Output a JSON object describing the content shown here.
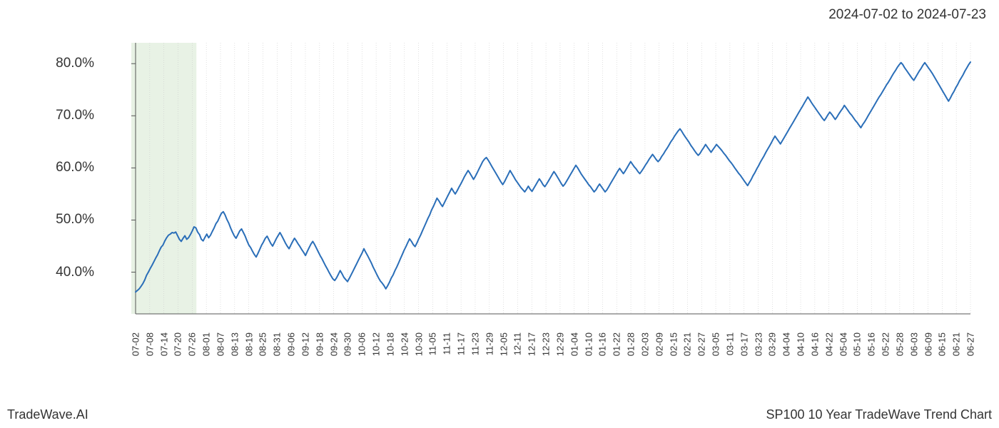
{
  "header": {
    "date_range": "2024-07-02 to 2024-07-23"
  },
  "footer": {
    "brand": "TradeWave.AI",
    "chart_title": "SP100 10 Year TradeWave Trend Chart"
  },
  "chart": {
    "type": "line",
    "background_color": "#ffffff",
    "axis_color": "#555555",
    "grid_color": "#cccccc",
    "grid_dash": "1,2",
    "line_color": "#2a6eb8",
    "line_width": 2,
    "highlight_band": {
      "fill": "#d9ead3",
      "opacity": 0.6,
      "x_start_index": 0,
      "x_end_index": 4
    },
    "y_axis": {
      "min": 32,
      "max": 84,
      "ticks": [
        40,
        50,
        60,
        70,
        80
      ],
      "tick_labels": [
        "40.0%",
        "50.0%",
        "60.0%",
        "70.0%",
        "80.0%"
      ],
      "label_fontsize": 19,
      "label_color": "#333333"
    },
    "x_axis": {
      "tick_labels": [
        "07-02",
        "07-08",
        "07-14",
        "07-20",
        "07-26",
        "08-01",
        "08-07",
        "08-13",
        "08-19",
        "08-25",
        "08-31",
        "09-06",
        "09-12",
        "09-18",
        "09-24",
        "09-30",
        "10-06",
        "10-12",
        "10-18",
        "10-24",
        "10-30",
        "11-05",
        "11-11",
        "11-17",
        "11-23",
        "11-29",
        "12-05",
        "12-11",
        "12-17",
        "12-23",
        "12-29",
        "01-04",
        "01-10",
        "01-16",
        "01-22",
        "01-28",
        "02-03",
        "02-09",
        "02-15",
        "02-21",
        "02-27",
        "03-05",
        "03-11",
        "03-17",
        "03-23",
        "03-29",
        "04-04",
        "04-10",
        "04-16",
        "04-22",
        "05-04",
        "05-10",
        "05-16",
        "05-22",
        "05-28",
        "06-03",
        "06-09",
        "06-15",
        "06-21",
        "06-27"
      ],
      "label_fontsize": 13,
      "label_color": "#333333",
      "rotation": -90
    },
    "series": {
      "values": [
        36.2,
        36.5,
        36.8,
        37.3,
        37.8,
        38.5,
        39.4,
        40.0,
        40.7,
        41.3,
        42.0,
        42.7,
        43.3,
        44.1,
        44.8,
        45.2,
        46.0,
        46.6,
        47.1,
        47.3,
        47.6,
        47.5,
        47.7,
        47.0,
        46.3,
        45.9,
        46.5,
        47.0,
        46.3,
        46.6,
        47.2,
        47.9,
        48.7,
        48.5,
        47.7,
        47.2,
        46.3,
        46.0,
        46.7,
        47.3,
        46.6,
        47.1,
        47.8,
        48.5,
        49.3,
        49.8,
        50.6,
        51.3,
        51.6,
        51.0,
        50.1,
        49.4,
        48.5,
        47.7,
        47.0,
        46.5,
        47.2,
        47.9,
        48.3,
        47.6,
        46.9,
        46.0,
        45.2,
        44.7,
        44.0,
        43.4,
        42.9,
        43.6,
        44.4,
        45.2,
        45.8,
        46.5,
        46.9,
        46.2,
        45.5,
        45.0,
        45.7,
        46.4,
        47.0,
        47.6,
        47.0,
        46.3,
        45.6,
        45.0,
        44.5,
        45.2,
        45.9,
        46.5,
        46.0,
        45.4,
        44.9,
        44.3,
        43.8,
        43.2,
        44.0,
        44.7,
        45.4,
        45.9,
        45.3,
        44.6,
        43.9,
        43.2,
        42.6,
        41.9,
        41.2,
        40.6,
        39.9,
        39.3,
        38.7,
        38.4,
        38.9,
        39.6,
        40.3,
        39.7,
        39.0,
        38.6,
        38.2,
        38.8,
        39.5,
        40.2,
        40.9,
        41.6,
        42.3,
        43.0,
        43.7,
        44.5,
        43.8,
        43.2,
        42.5,
        41.8,
        41.0,
        40.3,
        39.6,
        38.9,
        38.3,
        37.9,
        37.4,
        36.8,
        37.4,
        38.1,
        38.9,
        39.5,
        40.3,
        41.0,
        41.8,
        42.6,
        43.4,
        44.2,
        44.9,
        45.7,
        46.4,
        45.9,
        45.3,
        44.9,
        45.6,
        46.4,
        47.1,
        47.9,
        48.7,
        49.5,
        50.3,
        51.0,
        51.9,
        52.6,
        53.4,
        54.2,
        53.7,
        53.1,
        52.6,
        53.3,
        54.0,
        54.7,
        55.4,
        56.1,
        55.5,
        55.0,
        55.6,
        56.3,
        56.9,
        57.6,
        58.3,
        58.9,
        59.5,
        59.0,
        58.4,
        57.8,
        58.4,
        59.1,
        59.8,
        60.5,
        61.2,
        61.7,
        62.0,
        61.5,
        60.9,
        60.3,
        59.7,
        59.1,
        58.5,
        57.9,
        57.3,
        56.8,
        57.4,
        58.1,
        58.8,
        59.5,
        58.9,
        58.3,
        57.7,
        57.2,
        56.7,
        56.2,
        55.8,
        55.4,
        55.9,
        56.5,
        55.9,
        55.5,
        56.1,
        56.7,
        57.3,
        57.9,
        57.4,
        56.8,
        56.4,
        56.9,
        57.5,
        58.1,
        58.7,
        59.3,
        58.8,
        58.2,
        57.6,
        57.0,
        56.5,
        56.9,
        57.5,
        58.1,
        58.7,
        59.3,
        59.9,
        60.5,
        60.0,
        59.4,
        58.8,
        58.3,
        57.8,
        57.3,
        56.8,
        56.4,
        55.9,
        55.4,
        55.8,
        56.4,
        56.9,
        56.4,
        55.9,
        55.4,
        55.8,
        56.4,
        57.0,
        57.6,
        58.2,
        58.8,
        59.4,
        59.9,
        59.4,
        58.9,
        59.4,
        60.0,
        60.6,
        61.2,
        60.7,
        60.2,
        59.8,
        59.3,
        58.9,
        59.4,
        59.9,
        60.5,
        61.0,
        61.6,
        62.1,
        62.6,
        62.1,
        61.6,
        61.2,
        61.6,
        62.2,
        62.7,
        63.3,
        63.8,
        64.4,
        65.0,
        65.5,
        66.1,
        66.6,
        67.1,
        67.5,
        67.0,
        66.4,
        65.9,
        65.4,
        64.9,
        64.3,
        63.8,
        63.3,
        62.8,
        62.4,
        62.8,
        63.4,
        63.9,
        64.5,
        64.0,
        63.5,
        63.0,
        63.5,
        64.0,
        64.5,
        64.1,
        63.7,
        63.3,
        62.8,
        62.4,
        61.9,
        61.4,
        61.0,
        60.5,
        60.0,
        59.5,
        59.0,
        58.6,
        58.1,
        57.6,
        57.1,
        56.6,
        57.2,
        57.8,
        58.5,
        59.1,
        59.8,
        60.4,
        61.1,
        61.7,
        62.3,
        63.0,
        63.6,
        64.2,
        64.8,
        65.5,
        66.1,
        65.6,
        65.1,
        64.6,
        65.2,
        65.8,
        66.4,
        67.0,
        67.6,
        68.2,
        68.8,
        69.4,
        70.0,
        70.6,
        71.2,
        71.8,
        72.4,
        73.0,
        73.6,
        73.1,
        72.5,
        72.0,
        71.5,
        71.0,
        70.5,
        70.0,
        69.5,
        69.1,
        69.6,
        70.2,
        70.7,
        70.3,
        69.8,
        69.3,
        69.8,
        70.4,
        70.9,
        71.4,
        72.0,
        71.5,
        71.0,
        70.5,
        70.1,
        69.6,
        69.1,
        68.7,
        68.2,
        67.7,
        68.3,
        68.8,
        69.4,
        70.0,
        70.6,
        71.2,
        71.8,
        72.4,
        73.0,
        73.6,
        74.1,
        74.7,
        75.3,
        75.9,
        76.4,
        77.0,
        77.6,
        78.2,
        78.7,
        79.3,
        79.8,
        80.2,
        79.8,
        79.2,
        78.7,
        78.2,
        77.7,
        77.2,
        76.8,
        77.4,
        78.0,
        78.6,
        79.1,
        79.7,
        80.2,
        79.7,
        79.2,
        78.7,
        78.2,
        77.6,
        77.0,
        76.4,
        75.8,
        75.2,
        74.6,
        74.0,
        73.4,
        72.8,
        73.4,
        74.1,
        74.7,
        75.4,
        76.0,
        76.7,
        77.3,
        77.9,
        78.6,
        79.2,
        79.8,
        80.3
      ]
    }
  }
}
